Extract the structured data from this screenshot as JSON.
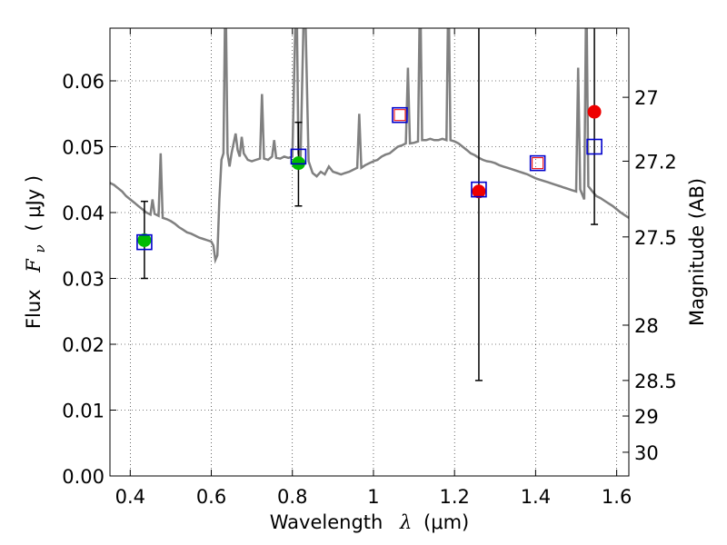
{
  "chart_data": {
    "type": "scatter",
    "xlabel": "Wavelength",
    "xlabel_math": "λ",
    "xlabel_unit": "(μm)",
    "ylabel": "Flux",
    "ylabel_math": "F",
    "ylabel_math_sub": "ν",
    "ylabel_unit": "( μJy )",
    "ylabel_right": "Magnitude (AB)",
    "xlim": [
      0.35,
      1.63
    ],
    "ylim": [
      0.0,
      0.068
    ],
    "xticks": [
      0.4,
      0.6,
      0.8,
      1.0,
      1.2,
      1.4,
      1.6
    ],
    "xtick_labels": [
      "0.4",
      "0.6",
      "0.8",
      "1",
      "1.2",
      "1.4",
      "1.6"
    ],
    "yticks": [
      0.0,
      0.01,
      0.02,
      0.03,
      0.04,
      0.05,
      0.06
    ],
    "ytick_labels": [
      "0.00",
      "0.01",
      "0.02",
      "0.03",
      "0.04",
      "0.05",
      "0.06"
    ],
    "right_ticks": [
      {
        "label": "27",
        "flux": 0.0575
      },
      {
        "label": "27.2",
        "flux": 0.0478
      },
      {
        "label": "27.5",
        "flux": 0.0363
      },
      {
        "label": "28",
        "flux": 0.0229
      },
      {
        "label": "28.5",
        "flux": 0.0145
      },
      {
        "label": "29",
        "flux": 0.0091
      },
      {
        "label": "30",
        "flux": 0.0036
      }
    ],
    "grid": true,
    "colors": {
      "sed": "#808080",
      "observed_detection": "#00bb00",
      "observed_upper": "#ee0000",
      "model": "#0000cc",
      "model_inner": "#ee0000",
      "errorbar": "#000000"
    },
    "sed": [
      [
        0.35,
        0.0445
      ],
      [
        0.36,
        0.0442
      ],
      [
        0.37,
        0.0437
      ],
      [
        0.38,
        0.0432
      ],
      [
        0.39,
        0.0425
      ],
      [
        0.4,
        0.042
      ],
      [
        0.41,
        0.0415
      ],
      [
        0.42,
        0.041
      ],
      [
        0.43,
        0.0405
      ],
      [
        0.44,
        0.04
      ],
      [
        0.45,
        0.0397
      ],
      [
        0.455,
        0.042
      ],
      [
        0.46,
        0.0398
      ],
      [
        0.47,
        0.0395
      ],
      [
        0.475,
        0.049
      ],
      [
        0.48,
        0.0392
      ],
      [
        0.49,
        0.039
      ],
      [
        0.5,
        0.0387
      ],
      [
        0.51,
        0.0383
      ],
      [
        0.52,
        0.0378
      ],
      [
        0.53,
        0.0374
      ],
      [
        0.54,
        0.037
      ],
      [
        0.55,
        0.0368
      ],
      [
        0.56,
        0.0365
      ],
      [
        0.57,
        0.0362
      ],
      [
        0.58,
        0.036
      ],
      [
        0.59,
        0.0358
      ],
      [
        0.6,
        0.0356
      ],
      [
        0.605,
        0.035
      ],
      [
        0.61,
        0.0328
      ],
      [
        0.615,
        0.0335
      ],
      [
        0.62,
        0.042
      ],
      [
        0.625,
        0.048
      ],
      [
        0.63,
        0.049
      ],
      [
        0.635,
        0.076
      ],
      [
        0.64,
        0.049
      ],
      [
        0.645,
        0.047
      ],
      [
        0.65,
        0.049
      ],
      [
        0.66,
        0.052
      ],
      [
        0.665,
        0.0495
      ],
      [
        0.67,
        0.0485
      ],
      [
        0.675,
        0.0515
      ],
      [
        0.68,
        0.049
      ],
      [
        0.69,
        0.048
      ],
      [
        0.7,
        0.0478
      ],
      [
        0.71,
        0.048
      ],
      [
        0.72,
        0.0482
      ],
      [
        0.725,
        0.058
      ],
      [
        0.73,
        0.0482
      ],
      [
        0.74,
        0.048
      ],
      [
        0.75,
        0.0485
      ],
      [
        0.755,
        0.051
      ],
      [
        0.76,
        0.0483
      ],
      [
        0.77,
        0.0482
      ],
      [
        0.78,
        0.0485
      ],
      [
        0.79,
        0.0483
      ],
      [
        0.8,
        0.0485
      ],
      [
        0.81,
        0.076
      ],
      [
        0.815,
        0.049
      ],
      [
        0.82,
        0.048
      ],
      [
        0.83,
        0.076
      ],
      [
        0.84,
        0.0478
      ],
      [
        0.85,
        0.046
      ],
      [
        0.86,
        0.0455
      ],
      [
        0.87,
        0.0462
      ],
      [
        0.88,
        0.0458
      ],
      [
        0.89,
        0.047
      ],
      [
        0.9,
        0.0462
      ],
      [
        0.91,
        0.046
      ],
      [
        0.92,
        0.0458
      ],
      [
        0.93,
        0.046
      ],
      [
        0.94,
        0.0462
      ],
      [
        0.95,
        0.0465
      ],
      [
        0.96,
        0.0468
      ],
      [
        0.965,
        0.055
      ],
      [
        0.97,
        0.0468
      ],
      [
        0.98,
        0.0472
      ],
      [
        0.99,
        0.0475
      ],
      [
        1.0,
        0.0478
      ],
      [
        1.01,
        0.048
      ],
      [
        1.02,
        0.0485
      ],
      [
        1.03,
        0.0488
      ],
      [
        1.04,
        0.049
      ],
      [
        1.05,
        0.0495
      ],
      [
        1.06,
        0.05
      ],
      [
        1.07,
        0.0502
      ],
      [
        1.08,
        0.0505
      ],
      [
        1.085,
        0.062
      ],
      [
        1.09,
        0.0505
      ],
      [
        1.1,
        0.0506
      ],
      [
        1.11,
        0.0508
      ],
      [
        1.115,
        0.076
      ],
      [
        1.12,
        0.051
      ],
      [
        1.13,
        0.051
      ],
      [
        1.14,
        0.0512
      ],
      [
        1.15,
        0.051
      ],
      [
        1.16,
        0.051
      ],
      [
        1.17,
        0.0512
      ],
      [
        1.18,
        0.051
      ],
      [
        1.185,
        0.076
      ],
      [
        1.19,
        0.051
      ],
      [
        1.2,
        0.0508
      ],
      [
        1.21,
        0.0505
      ],
      [
        1.22,
        0.05
      ],
      [
        1.23,
        0.0495
      ],
      [
        1.24,
        0.049
      ],
      [
        1.25,
        0.0487
      ],
      [
        1.26,
        0.0483
      ],
      [
        1.27,
        0.048
      ],
      [
        1.28,
        0.0478
      ],
      [
        1.29,
        0.0477
      ],
      [
        1.3,
        0.0475
      ],
      [
        1.31,
        0.0472
      ],
      [
        1.32,
        0.047
      ],
      [
        1.33,
        0.0468
      ],
      [
        1.34,
        0.0466
      ],
      [
        1.35,
        0.0464
      ],
      [
        1.36,
        0.0462
      ],
      [
        1.37,
        0.046
      ],
      [
        1.38,
        0.0458
      ],
      [
        1.39,
        0.0455
      ],
      [
        1.4,
        0.0452
      ],
      [
        1.41,
        0.045
      ],
      [
        1.42,
        0.0448
      ],
      [
        1.43,
        0.0446
      ],
      [
        1.44,
        0.0444
      ],
      [
        1.45,
        0.0442
      ],
      [
        1.46,
        0.044
      ],
      [
        1.47,
        0.0438
      ],
      [
        1.48,
        0.0436
      ],
      [
        1.49,
        0.0434
      ],
      [
        1.5,
        0.0432
      ],
      [
        1.505,
        0.062
      ],
      [
        1.51,
        0.0435
      ],
      [
        1.52,
        0.042
      ],
      [
        1.525,
        0.076
      ],
      [
        1.53,
        0.044
      ],
      [
        1.54,
        0.0432
      ],
      [
        1.55,
        0.0425
      ],
      [
        1.56,
        0.0422
      ],
      [
        1.57,
        0.0418
      ],
      [
        1.58,
        0.0414
      ],
      [
        1.59,
        0.041
      ],
      [
        1.6,
        0.0405
      ],
      [
        1.61,
        0.04
      ],
      [
        1.62,
        0.0396
      ],
      [
        1.63,
        0.0392
      ]
    ],
    "observed": [
      {
        "x": 0.435,
        "y": 0.0358,
        "err_low": 0.03,
        "err_high": 0.0417,
        "kind": "detection"
      },
      {
        "x": 0.815,
        "y": 0.0475,
        "err_low": 0.041,
        "err_high": 0.0537,
        "kind": "detection"
      },
      {
        "x": 1.26,
        "y": 0.0432,
        "err_low": 0.0145,
        "err_high": 0.07,
        "kind": "upper"
      },
      {
        "x": 1.545,
        "y": 0.0553,
        "err_low": 0.0382,
        "err_high": 0.07,
        "kind": "upper"
      }
    ],
    "model": [
      {
        "x": 0.435,
        "y": 0.0355,
        "inner": false
      },
      {
        "x": 0.815,
        "y": 0.0485,
        "inner": false
      },
      {
        "x": 1.065,
        "y": 0.0548,
        "inner": true
      },
      {
        "x": 1.26,
        "y": 0.0435,
        "inner": false
      },
      {
        "x": 1.405,
        "y": 0.0475,
        "inner": true
      },
      {
        "x": 1.545,
        "y": 0.05,
        "inner": false
      }
    ]
  }
}
